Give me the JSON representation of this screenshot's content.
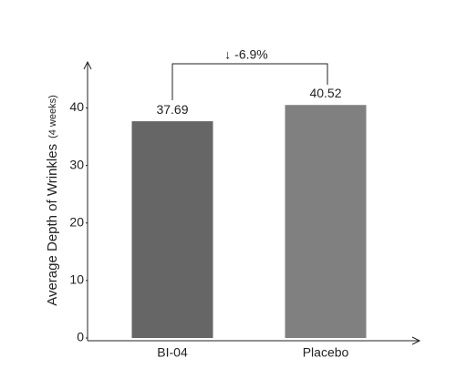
{
  "chart_data": {
    "type": "bar",
    "y_label": "Average Depth of Wrinkles",
    "y_label_note": "(4 weeks)",
    "categories": [
      "BI-04",
      "Placebo"
    ],
    "values": [
      37.69,
      40.52
    ],
    "colors": [
      "#666666",
      "#808080"
    ],
    "annotation": "↓ -6.9%",
    "ylim": [
      0,
      48
    ],
    "yticks": [
      0,
      10,
      20,
      30,
      40
    ],
    "grid": false
  }
}
